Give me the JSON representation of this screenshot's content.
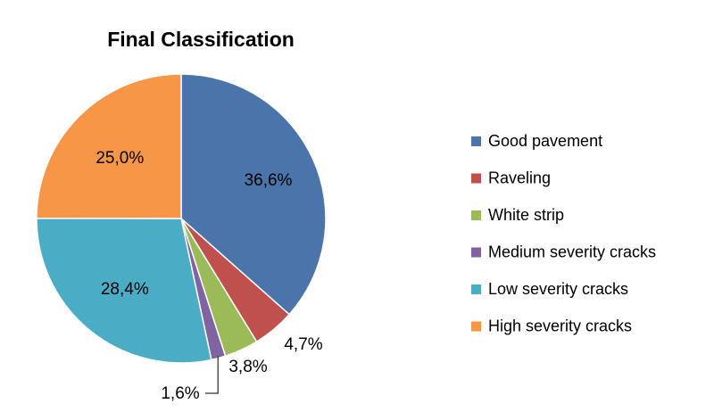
{
  "chart_data": {
    "type": "pie",
    "title": "Final Classification",
    "categories": [
      "Good pavement",
      "Raveling",
      "White strip",
      "Medium severity cracks",
      "Low severity cracks",
      "High severity cracks"
    ],
    "values": [
      36.6,
      4.7,
      3.8,
      1.6,
      28.4,
      25.0
    ],
    "value_labels": [
      "36,6%",
      "4,7%",
      "3,8%",
      "1,6%",
      "28,4%",
      "25,0%"
    ],
    "colors": [
      "#4a74aa",
      "#c0504d",
      "#9bbb59",
      "#8064a2",
      "#4bacc6",
      "#f79646"
    ],
    "legend_position": "right",
    "start_angle": "12 o'clock",
    "direction": "clockwise"
  }
}
